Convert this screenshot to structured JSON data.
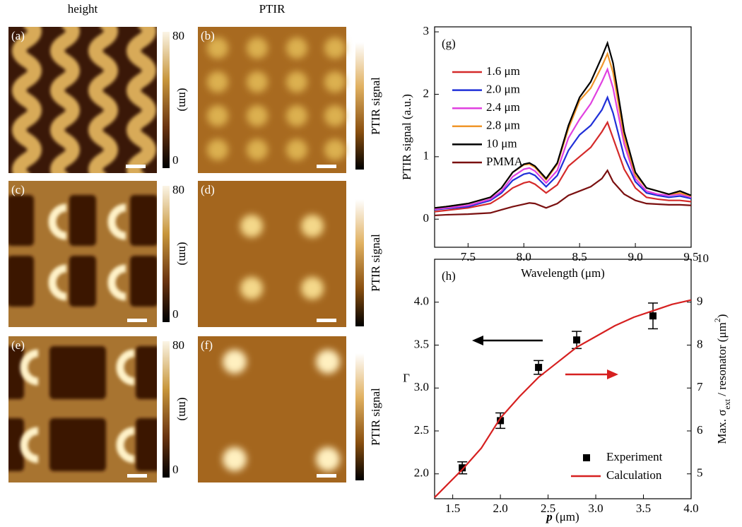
{
  "column_titles": [
    "height",
    "PTIR"
  ],
  "panels": [
    {
      "label": "(a)",
      "colorbar_max": "80",
      "colorbar_unit": "(nm)",
      "colorbar_min": "0"
    },
    {
      "label": "(b)",
      "colorbar_label": "PTIR signal"
    },
    {
      "label": "(c)",
      "colorbar_max": "80",
      "colorbar_unit": "(nm)",
      "colorbar_min": "0"
    },
    {
      "label": "(d)",
      "colorbar_label": "PTIR signal"
    },
    {
      "label": "(e)",
      "colorbar_max": "80",
      "colorbar_unit": "(nm)",
      "colorbar_min": "0"
    },
    {
      "label": "(f)",
      "colorbar_label": "PTIR signal"
    }
  ],
  "chart_data": [
    {
      "type": "line",
      "panel_label": "(g)",
      "x_label": "Wavelength (μm)",
      "y_label": "PTIR signal (a.u.)",
      "xlim": [
        7.2,
        9.5
      ],
      "xticks": [
        7.5,
        {
          "value": 8.0,
          "label": "8.0"
        },
        8.5,
        {
          "value": 9.0,
          "label": "9.0"
        },
        9.5
      ],
      "ylim": [
        -0.45,
        3.08
      ],
      "yticks": [
        0,
        1,
        2,
        3
      ],
      "x": [
        7.2,
        7.3,
        7.5,
        7.7,
        7.8,
        7.9,
        8.0,
        8.05,
        8.1,
        8.2,
        8.3,
        8.4,
        8.5,
        8.6,
        8.7,
        8.75,
        8.8,
        8.9,
        9.0,
        9.1,
        9.2,
        9.3,
        9.4,
        9.5
      ],
      "series": [
        {
          "name": "1.6 μm",
          "color": "#d42a2a",
          "values": [
            0.12,
            0.14,
            0.18,
            0.25,
            0.36,
            0.5,
            0.58,
            0.6,
            0.56,
            0.42,
            0.55,
            0.85,
            1.0,
            1.15,
            1.4,
            1.55,
            1.3,
            0.8,
            0.5,
            0.35,
            0.32,
            0.3,
            0.3,
            0.28
          ]
        },
        {
          "name": "2.0 μm",
          "color": "#2030d8",
          "values": [
            0.15,
            0.17,
            0.2,
            0.3,
            0.42,
            0.62,
            0.72,
            0.74,
            0.7,
            0.52,
            0.7,
            1.1,
            1.35,
            1.5,
            1.75,
            1.95,
            1.7,
            1.0,
            0.6,
            0.42,
            0.38,
            0.35,
            0.37,
            0.33
          ]
        },
        {
          "name": "2.4 μm",
          "color": "#e040e0",
          "values": [
            0.16,
            0.18,
            0.22,
            0.32,
            0.45,
            0.68,
            0.8,
            0.82,
            0.77,
            0.58,
            0.78,
            1.3,
            1.6,
            1.85,
            2.2,
            2.4,
            2.1,
            1.2,
            0.65,
            0.45,
            0.4,
            0.38,
            0.4,
            0.35
          ]
        },
        {
          "name": "2.8 μm",
          "color": "#f0962a",
          "values": [
            0.18,
            0.2,
            0.25,
            0.35,
            0.5,
            0.75,
            0.87,
            0.88,
            0.83,
            0.63,
            0.88,
            1.45,
            1.9,
            2.1,
            2.45,
            2.65,
            2.35,
            1.3,
            0.7,
            0.5,
            0.45,
            0.4,
            0.42,
            0.37
          ]
        },
        {
          "name": "10 μm",
          "color": "#000000",
          "values": [
            0.18,
            0.2,
            0.25,
            0.35,
            0.5,
            0.75,
            0.88,
            0.9,
            0.85,
            0.65,
            0.9,
            1.5,
            1.95,
            2.2,
            2.6,
            2.82,
            2.5,
            1.4,
            0.75,
            0.5,
            0.45,
            0.4,
            0.45,
            0.38
          ]
        },
        {
          "name": "PMMA",
          "color": "#7a1010",
          "values": [
            0.06,
            0.07,
            0.08,
            0.1,
            0.15,
            0.2,
            0.24,
            0.26,
            0.25,
            0.18,
            0.25,
            0.38,
            0.45,
            0.52,
            0.65,
            0.78,
            0.6,
            0.4,
            0.3,
            0.25,
            0.24,
            0.23,
            0.23,
            0.22
          ]
        }
      ]
    },
    {
      "type": "scatter",
      "panel_label": "(h)",
      "x_label": [
        "p",
        " (μm)"
      ],
      "y_label": "Γ",
      "y2_label": [
        "Max. σ",
        "ext",
        " / resonator (μm",
        "2",
        ")"
      ],
      "xlim": [
        1.31,
        4.0
      ],
      "xticks": [
        1.5,
        {
          "value": 2.0,
          "label": "2.0"
        },
        2.5,
        {
          "value": 3.0,
          "label": "3.0"
        },
        3.5,
        {
          "value": 4.0,
          "label": "4.0"
        }
      ],
      "ylim": [
        1.71,
        4.5
      ],
      "yticks": [
        {
          "value": 2.0,
          "label": "2.0"
        },
        2.5,
        {
          "value": 3.0,
          "label": "3.0"
        },
        3.5,
        {
          "value": 4.0,
          "label": "4.0"
        }
      ],
      "y2lim": [
        4.42,
        10
      ],
      "y2ticks": [
        5,
        6,
        7,
        8,
        9,
        10
      ],
      "x": [
        1.6,
        2.0,
        2.4,
        2.8,
        3.6
      ],
      "series": [
        {
          "name": "Experiment",
          "color": "#000000",
          "values": [
            2.07,
            2.62,
            3.24,
            3.56,
            3.84
          ],
          "errors": [
            0.07,
            0.09,
            0.08,
            0.1,
            0.15
          ]
        },
        {
          "name": "Calculation",
          "color": "#d62020",
          "axis": "y2",
          "x": [
            1.31,
            1.6,
            1.8,
            2.0,
            2.2,
            2.4,
            2.6,
            2.8,
            3.0,
            3.2,
            3.4,
            3.6,
            3.8,
            4.0
          ],
          "values": [
            4.45,
            5.1,
            5.6,
            6.3,
            6.8,
            7.25,
            7.6,
            7.95,
            8.2,
            8.45,
            8.65,
            8.8,
            8.95,
            9.05
          ]
        }
      ]
    }
  ]
}
